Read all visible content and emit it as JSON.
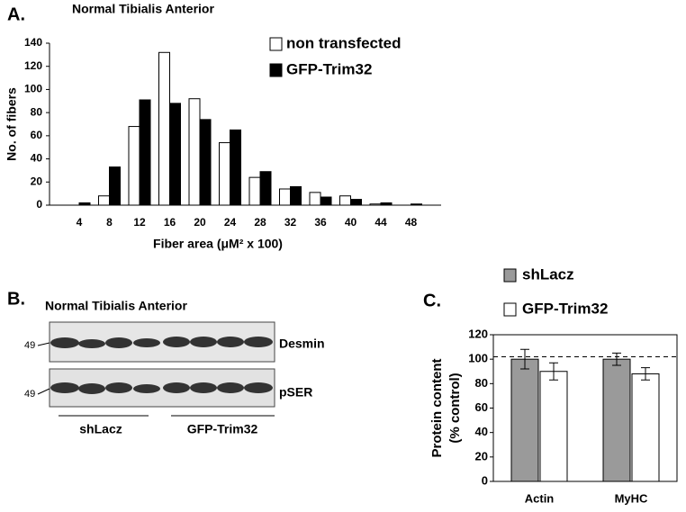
{
  "chart_data": [
    {
      "type": "bar",
      "panel_label": "A.",
      "title": "Normal Tibialis Anterior",
      "xlabel": "Fiber area (μM² x 100)",
      "ylabel": "No. of fibers",
      "categories": [
        "4",
        "8",
        "12",
        "16",
        "20",
        "24",
        "28",
        "32",
        "36",
        "40",
        "44",
        "48"
      ],
      "series": [
        {
          "name": "non transfected",
          "color": "#ffffff",
          "values": [
            0,
            8,
            68,
            132,
            92,
            54,
            24,
            14,
            11,
            8,
            1,
            0
          ]
        },
        {
          "name": "GFP-Trim32",
          "color": "#000000",
          "values": [
            2,
            33,
            91,
            88,
            74,
            65,
            29,
            16,
            7,
            5,
            2,
            1
          ]
        }
      ],
      "ylim": [
        0,
        140
      ],
      "yticks": [
        0,
        20,
        40,
        60,
        80,
        100,
        120,
        140
      ],
      "grid": false
    },
    {
      "type": "bar",
      "panel_label": "C.",
      "ylabel": [
        "Protein content",
        "(% control)"
      ],
      "categories": [
        "Actin",
        "MyHC"
      ],
      "series": [
        {
          "name": "shLacz",
          "color": "#9a9a9a",
          "values": [
            100,
            100
          ],
          "errors": [
            8,
            5
          ]
        },
        {
          "name": "GFP-Trim32",
          "color": "#ffffff",
          "values": [
            90,
            88
          ],
          "errors": [
            7,
            5
          ]
        }
      ],
      "reference_line": 102,
      "ylim": [
        0,
        120
      ],
      "yticks": [
        0,
        20,
        40,
        60,
        80,
        100,
        120
      ],
      "grid": false
    }
  ],
  "blot": {
    "panel_label": "B.",
    "title": "Normal Tibialis Anterior",
    "markers": [
      "49",
      "49"
    ],
    "rows": [
      "Desmin",
      "pSER"
    ],
    "groups": [
      "shLacz",
      "GFP-Trim32"
    ]
  }
}
